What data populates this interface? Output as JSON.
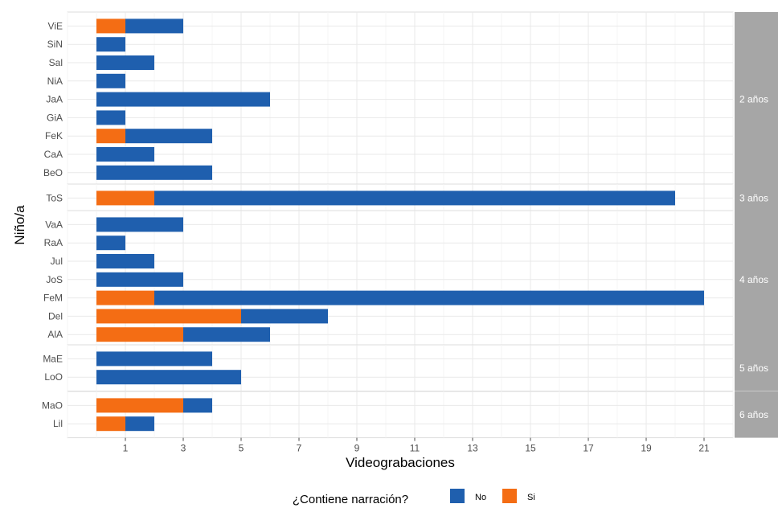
{
  "chart_data": {
    "type": "bar",
    "orientation": "horizontal",
    "stacked": true,
    "xlabel": "Videograbaciones",
    "ylabel": "Niño/a",
    "xlim": [
      -1,
      22
    ],
    "xticks": [
      1,
      3,
      5,
      7,
      9,
      11,
      13,
      15,
      17,
      19,
      21
    ],
    "grid": true,
    "legend": {
      "title": "¿Contiene narración?",
      "position": "bottom",
      "entries": [
        {
          "name": "No",
          "color": "#1f5fae"
        },
        {
          "name": "Si",
          "color": "#f46d14"
        }
      ]
    },
    "panels": [
      {
        "strip": "2 años",
        "categories": [
          "ViE",
          "SiN",
          "Sal",
          "NiA",
          "JaA",
          "GiA",
          "FeK",
          "CaA",
          "BeO"
        ],
        "series": [
          {
            "name": "Si",
            "values": [
              1,
              0,
              0,
              0,
              0,
              0,
              1,
              0,
              0
            ]
          },
          {
            "name": "No",
            "values": [
              2,
              1,
              2,
              1,
              6,
              1,
              3,
              2,
              4
            ]
          }
        ]
      },
      {
        "strip": "3 años",
        "categories": [
          "ToS"
        ],
        "series": [
          {
            "name": "Si",
            "values": [
              2
            ]
          },
          {
            "name": "No",
            "values": [
              18
            ]
          }
        ]
      },
      {
        "strip": "4 años",
        "categories": [
          "VaA",
          "RaA",
          "Jul",
          "JoS",
          "FeM",
          "Del",
          "AlA"
        ],
        "series": [
          {
            "name": "Si",
            "values": [
              0,
              0,
              0,
              0,
              2,
              5,
              3
            ]
          },
          {
            "name": "No",
            "values": [
              3,
              1,
              2,
              3,
              19,
              3,
              3
            ]
          }
        ]
      },
      {
        "strip": "5 años",
        "categories": [
          "MaE",
          "LoO"
        ],
        "series": [
          {
            "name": "Si",
            "values": [
              0,
              0
            ]
          },
          {
            "name": "No",
            "values": [
              4,
              5
            ]
          }
        ]
      },
      {
        "strip": "6 años",
        "categories": [
          "MaO",
          "Lil"
        ],
        "series": [
          {
            "name": "Si",
            "values": [
              3,
              1
            ]
          },
          {
            "name": "No",
            "values": [
              1,
              1
            ]
          }
        ]
      }
    ]
  },
  "colors": {
    "no": "#1f5fae",
    "si": "#f46d14",
    "strip_bg": "#a6a6a6",
    "panel_border": "#dcdcdc",
    "grid_major": "#e9e9e9",
    "grid_minor": "#f4f4f4"
  }
}
